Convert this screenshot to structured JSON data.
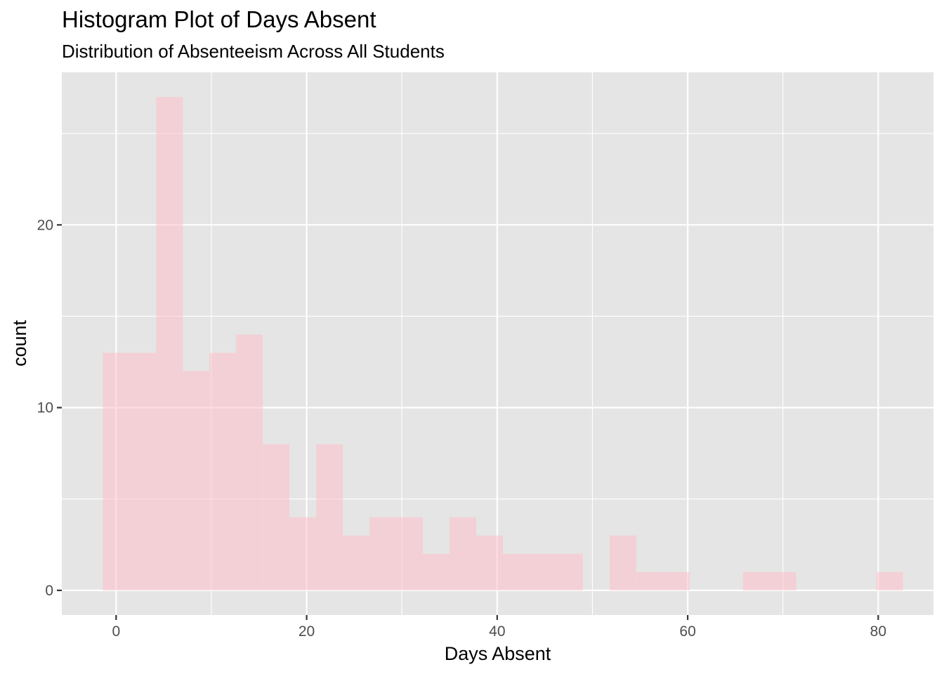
{
  "chart_data": {
    "type": "histogram",
    "title": "Histogram Plot of Days Absent",
    "subtitle": "Distribution of Absenteeism Across All Students",
    "xlabel": "Days Absent",
    "ylabel": "count",
    "xlim": [
      -5.7,
      85.8
    ],
    "ylim": [
      -1.35,
      28.35
    ],
    "x_ticks": [
      0,
      20,
      40,
      60,
      80
    ],
    "x_tick_labels": [
      "0",
      "20",
      "40",
      "60",
      "80"
    ],
    "y_ticks": [
      0,
      10,
      20
    ],
    "y_tick_labels": [
      "0",
      "10",
      "20"
    ],
    "x_minor_grid": [
      10,
      30,
      50,
      70
    ],
    "y_minor_grid": [
      5,
      15,
      25
    ],
    "bin_width": 2.8,
    "bins": [
      {
        "x0": -1.4,
        "x1": 1.4,
        "count": 13
      },
      {
        "x0": 1.4,
        "x1": 4.2,
        "count": 13
      },
      {
        "x0": 4.2,
        "x1": 7.0,
        "count": 27
      },
      {
        "x0": 7.0,
        "x1": 9.8,
        "count": 12
      },
      {
        "x0": 9.8,
        "x1": 12.6,
        "count": 13
      },
      {
        "x0": 12.6,
        "x1": 15.4,
        "count": 14
      },
      {
        "x0": 15.4,
        "x1": 18.2,
        "count": 8
      },
      {
        "x0": 18.2,
        "x1": 21.0,
        "count": 4
      },
      {
        "x0": 21.0,
        "x1": 23.8,
        "count": 8
      },
      {
        "x0": 23.8,
        "x1": 26.6,
        "count": 3
      },
      {
        "x0": 26.6,
        "x1": 29.4,
        "count": 4
      },
      {
        "x0": 29.4,
        "x1": 32.2,
        "count": 4
      },
      {
        "x0": 32.2,
        "x1": 35.0,
        "count": 2
      },
      {
        "x0": 35.0,
        "x1": 37.8,
        "count": 4
      },
      {
        "x0": 37.8,
        "x1": 40.6,
        "count": 3
      },
      {
        "x0": 40.6,
        "x1": 43.4,
        "count": 2
      },
      {
        "x0": 43.4,
        "x1": 46.2,
        "count": 2
      },
      {
        "x0": 46.2,
        "x1": 49.0,
        "count": 2
      },
      {
        "x0": 49.0,
        "x1": 51.8,
        "count": 0
      },
      {
        "x0": 51.8,
        "x1": 54.6,
        "count": 3
      },
      {
        "x0": 54.6,
        "x1": 57.4,
        "count": 1
      },
      {
        "x0": 57.4,
        "x1": 60.2,
        "count": 1
      },
      {
        "x0": 60.2,
        "x1": 63.0,
        "count": 0
      },
      {
        "x0": 63.0,
        "x1": 65.8,
        "count": 0
      },
      {
        "x0": 65.8,
        "x1": 68.6,
        "count": 1
      },
      {
        "x0": 68.6,
        "x1": 71.4,
        "count": 1
      },
      {
        "x0": 71.4,
        "x1": 74.2,
        "count": 0
      },
      {
        "x0": 74.2,
        "x1": 77.0,
        "count": 0
      },
      {
        "x0": 77.0,
        "x1": 79.8,
        "count": 0
      },
      {
        "x0": 79.8,
        "x1": 82.6,
        "count": 1
      }
    ],
    "colors": {
      "panel_background": "#e5e5e5",
      "grid": "#ffffff",
      "bar_fill": "#ffc0cb",
      "bar_opacity": 0.55,
      "tick": "#333333"
    },
    "grid": true,
    "legend": "none"
  }
}
